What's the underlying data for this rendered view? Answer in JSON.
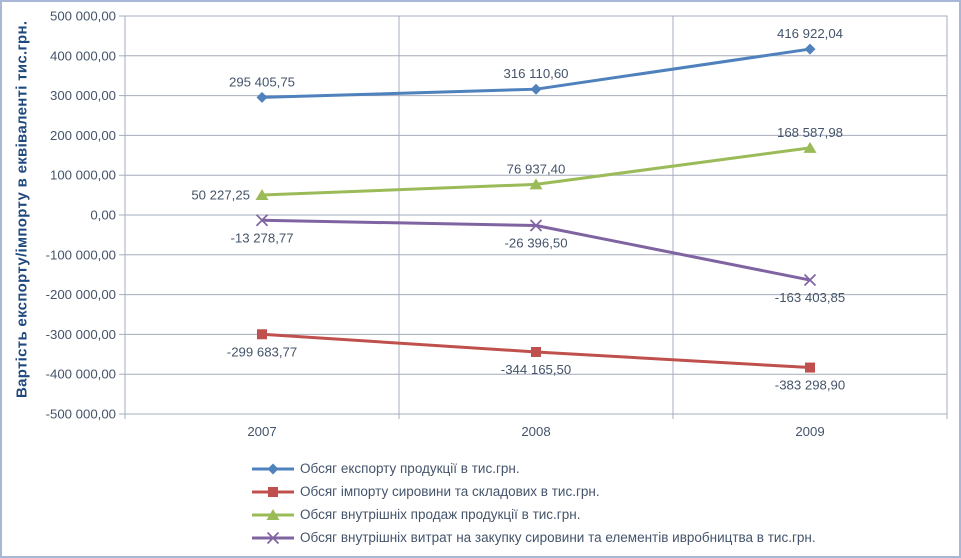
{
  "chart_data": {
    "type": "line",
    "title": "",
    "xlabel": "",
    "ylabel": "Вартість експорту/імпорту в еквіваленті тис.грн.",
    "categories": [
      "2007",
      "2008",
      "2009"
    ],
    "ylim": [
      -500000,
      500000
    ],
    "ytick_step": 100000,
    "ytick_labels": [
      "500 000,00",
      "400 000,00",
      "300 000,00",
      "200 000,00",
      "100 000,00",
      "0,00",
      "-100 000,00",
      "-200 000,00",
      "-300 000,00",
      "-400 000,00",
      "-500 000,00"
    ],
    "grid": true,
    "legend_position": "bottom-left",
    "colors": {
      "grid": "#A6ACBC",
      "plot_border": "#A6ACBC",
      "axis_text": "#44546A",
      "data_label_text": "#44546A",
      "y_title_text": "#1F497D",
      "frame_border": "#A9B7D6"
    },
    "series": [
      {
        "name": "Обсяг експорту продукції в тис.грн.",
        "color": "#4F81BD",
        "marker": "diamond",
        "values": [
          295405.75,
          316110.6,
          416922.04
        ],
        "labels": [
          "295 405,75",
          "316 110,60",
          "416 922,04"
        ],
        "label_positions": [
          "above",
          "above",
          "above"
        ]
      },
      {
        "name": "Обсяг імпорту сировини та складових в тис.грн.",
        "color": "#C0504D",
        "marker": "square",
        "values": [
          -299683.77,
          -344165.5,
          -383298.9
        ],
        "labels": [
          "-299 683,77",
          "-344 165,50",
          "-383 298,90"
        ],
        "label_positions": [
          "below",
          "below",
          "below"
        ]
      },
      {
        "name": "Обсяг внутрішніх продаж продукції в тис.грн.",
        "color": "#9BBB59",
        "marker": "triangle",
        "values": [
          50227.25,
          76937.4,
          168587.98
        ],
        "labels": [
          "50 227,25",
          "76 937,40",
          "168 587,98"
        ],
        "label_positions": [
          "left",
          "above",
          "above"
        ]
      },
      {
        "name": "Обсяг внутрішніх витрат на закупку сировини та елементів ивробництва в тис.грн.",
        "color": "#8064A2",
        "marker": "x",
        "values": [
          -13278.77,
          -26396.5,
          -163403.85
        ],
        "labels": [
          "-13 278,77",
          "-26 396,50",
          "-163 403,85"
        ],
        "label_positions": [
          "below",
          "below",
          "below"
        ]
      }
    ]
  }
}
